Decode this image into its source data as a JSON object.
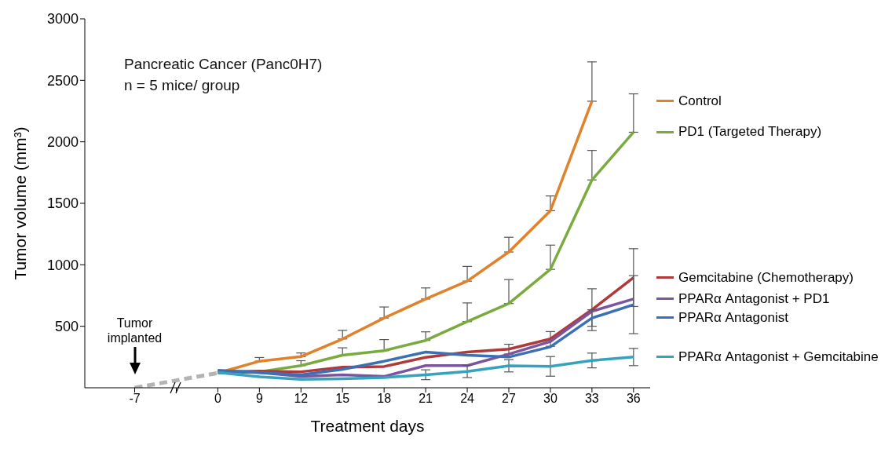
{
  "chart_data": {
    "type": "line",
    "title": "Pancreatic Cancer (Panc0H7)",
    "subtitle": "n = 5 mice/ group",
    "xlabel": "Treatment days",
    "ylabel": "Tumor volume (mm³)",
    "categories": [
      "-7",
      null,
      "0",
      "9",
      "12",
      "15",
      "18",
      "21",
      "24",
      "27",
      "30",
      "33",
      "36"
    ],
    "ylim": [
      0,
      3000
    ],
    "yticks": [
      500,
      1000,
      1500,
      2000,
      2500,
      3000
    ],
    "legend": "right",
    "marker": "none",
    "line_style": "solid",
    "annotations": [
      "Tumor implanted"
    ],
    "series": [
      {
        "color": "#b3b3b3",
        "line_style": "dashed",
        "values": [
          0,
          null,
          120,
          null,
          null,
          null,
          null,
          null,
          null,
          null,
          null,
          null,
          null
        ]
      },
      {
        "name": "Control",
        "color": "#e0822c",
        "values": [
          null,
          null,
          120,
          216,
          253,
          397,
          567,
          722,
          867,
          1104,
          1440,
          2330,
          null
        ],
        "errors": [
          null,
          null,
          null,
          [
            216,
            246
          ],
          [
            253,
            283
          ],
          [
            397,
            467
          ],
          [
            567,
            657
          ],
          [
            722,
            812
          ],
          [
            867,
            987
          ],
          [
            1104,
            1224
          ],
          [
            1440,
            1560
          ],
          [
            2330,
            2650
          ],
          null
        ]
      },
      {
        "name": "PD1 (Targeted Therapy)",
        "color": "#7aab3e",
        "values": [
          null,
          null,
          120,
          130,
          180,
          265,
          302,
          385,
          538,
          685,
          963,
          1690,
          2078
        ],
        "errors": [
          null,
          null,
          null,
          null,
          [
            180,
            220
          ],
          [
            265,
            325
          ],
          [
            302,
            392
          ],
          [
            385,
            455
          ],
          [
            538,
            690
          ],
          [
            685,
            880
          ],
          [
            963,
            1160
          ],
          [
            1690,
            1930
          ],
          [
            2078,
            2390
          ]
        ]
      },
      {
        "name": "Gemcitabine (Chemotherapy)",
        "color": "#b03a3a",
        "values": [
          null,
          null,
          130,
          135,
          130,
          167,
          173,
          247,
          290,
          314,
          397,
          635,
          896
        ],
        "errors": [
          null,
          null,
          null,
          null,
          null,
          null,
          null,
          null,
          null,
          [
            274,
            354
          ],
          [
            337,
            457
          ],
          [
            465,
            805
          ],
          [
            661,
            1131
          ]
        ]
      },
      {
        "name": "PPARα Antagonist + PD1",
        "color": "#7b559e",
        "values": [
          null,
          null,
          140,
          125,
          92,
          105,
          92,
          180,
          180,
          274,
          376,
          622,
          722
        ]
      },
      {
        "name": "PPARα Antagonist",
        "color": "#3b70b5",
        "values": [
          null,
          null,
          140,
          123,
          105,
          150,
          216,
          290,
          265,
          250,
          333,
          567,
          676
        ],
        "errors": [
          null,
          null,
          null,
          null,
          null,
          null,
          null,
          null,
          null,
          null,
          null,
          [
            500,
            634
          ],
          [
            440,
            912
          ]
        ]
      },
      {
        "name": "PPARα Antagonist + Gemcitabine",
        "color": "#35a3bd",
        "values": [
          null,
          null,
          125,
          89,
          68,
          74,
          83,
          106,
          133,
          179,
          174,
          222,
          250
        ],
        "errors": [
          null,
          null,
          null,
          null,
          null,
          null,
          null,
          [
            66,
            146
          ],
          [
            83,
            183
          ],
          [
            129,
            229
          ],
          [
            94,
            254
          ],
          [
            162,
            282
          ],
          [
            180,
            320
          ]
        ]
      }
    ]
  }
}
